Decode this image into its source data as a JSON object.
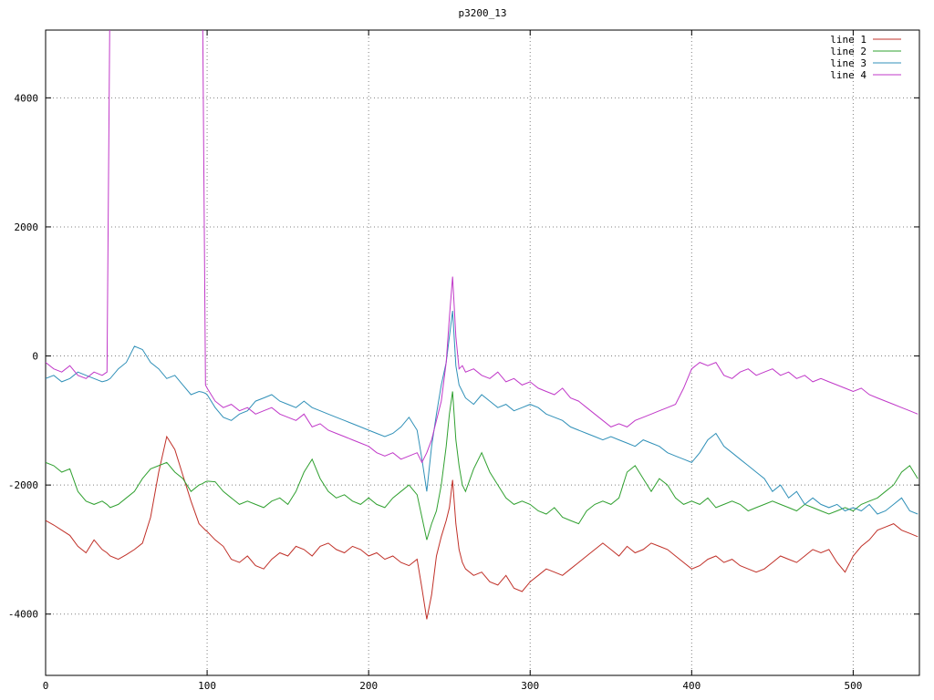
{
  "chart_data": {
    "type": "line",
    "title": "p3200_13",
    "xlabel": "",
    "ylabel": "",
    "xlim": [
      0,
      541
    ],
    "ylim": [
      -4950,
      5050
    ],
    "x_ticks": [
      0,
      100,
      200,
      300,
      400,
      500
    ],
    "y_ticks": [
      -4000,
      -2000,
      0,
      2000,
      4000
    ],
    "grid": "dotted",
    "legend_position": "top-right",
    "note": "line 4 is clipped above the plot top between x=40 and x=97",
    "x": [
      0,
      5,
      10,
      15,
      20,
      25,
      30,
      35,
      38,
      40,
      45,
      50,
      55,
      60,
      65,
      70,
      75,
      80,
      85,
      90,
      95,
      97,
      99,
      100,
      105,
      110,
      115,
      120,
      125,
      130,
      135,
      140,
      145,
      150,
      155,
      160,
      165,
      170,
      175,
      180,
      185,
      190,
      195,
      200,
      205,
      210,
      215,
      220,
      225,
      230,
      233,
      236,
      239,
      242,
      245,
      248,
      250,
      252,
      254,
      256,
      258,
      260,
      265,
      270,
      275,
      280,
      285,
      290,
      295,
      300,
      305,
      310,
      315,
      320,
      325,
      330,
      335,
      340,
      345,
      350,
      355,
      360,
      365,
      370,
      375,
      380,
      385,
      390,
      395,
      400,
      405,
      410,
      415,
      420,
      425,
      430,
      435,
      440,
      445,
      450,
      455,
      460,
      465,
      470,
      475,
      480,
      485,
      490,
      495,
      500,
      505,
      510,
      515,
      520,
      525,
      530,
      535,
      540
    ],
    "series": [
      {
        "name": "line 1",
        "color": "#c03028",
        "values": [
          -2550,
          -2620,
          -2700,
          -2780,
          -2950,
          -3050,
          -2850,
          -3000,
          -3050,
          -3100,
          -3150,
          -3080,
          -3000,
          -2900,
          -2500,
          -1800,
          -1250,
          -1450,
          -1850,
          -2250,
          -2600,
          -2650,
          -2700,
          -2720,
          -2850,
          -2950,
          -3150,
          -3200,
          -3100,
          -3250,
          -3300,
          -3150,
          -3050,
          -3100,
          -2950,
          -3000,
          -3100,
          -2950,
          -2900,
          -3000,
          -3050,
          -2950,
          -3000,
          -3100,
          -3050,
          -3150,
          -3100,
          -3200,
          -3250,
          -3150,
          -3600,
          -4080,
          -3700,
          -3100,
          -2800,
          -2550,
          -2350,
          -1920,
          -2600,
          -3000,
          -3200,
          -3300,
          -3400,
          -3350,
          -3500,
          -3550,
          -3400,
          -3600,
          -3650,
          -3500,
          -3400,
          -3300,
          -3350,
          -3400,
          -3300,
          -3200,
          -3100,
          -3000,
          -2900,
          -3000,
          -3100,
          -2950,
          -3050,
          -3000,
          -2900,
          -2950,
          -3000,
          -3100,
          -3200,
          -3300,
          -3250,
          -3150,
          -3100,
          -3200,
          -3150,
          -3250,
          -3300,
          -3350,
          -3300,
          -3200,
          -3100,
          -3150,
          -3200,
          -3100,
          -3000,
          -3050,
          -3000,
          -3200,
          -3350,
          -3100,
          -2950,
          -2850,
          -2700,
          -2650,
          -2600,
          -2700,
          -2750,
          -2800
        ]
      },
      {
        "name": "line 2",
        "color": "#30a030",
        "values": [
          -1650,
          -1700,
          -1800,
          -1750,
          -2100,
          -2250,
          -2300,
          -2250,
          -2300,
          -2350,
          -2300,
          -2200,
          -2100,
          -1900,
          -1750,
          -1700,
          -1650,
          -1800,
          -1900,
          -2100,
          -2000,
          -1980,
          -1950,
          -1940,
          -1950,
          -2100,
          -2200,
          -2300,
          -2250,
          -2300,
          -2350,
          -2250,
          -2200,
          -2300,
          -2100,
          -1800,
          -1600,
          -1900,
          -2100,
          -2200,
          -2150,
          -2250,
          -2300,
          -2200,
          -2300,
          -2350,
          -2200,
          -2100,
          -2000,
          -2150,
          -2500,
          -2850,
          -2600,
          -2400,
          -2000,
          -1400,
          -900,
          -550,
          -1300,
          -1700,
          -2000,
          -2100,
          -1750,
          -1500,
          -1800,
          -2000,
          -2200,
          -2300,
          -2250,
          -2300,
          -2400,
          -2450,
          -2350,
          -2500,
          -2550,
          -2600,
          -2400,
          -2300,
          -2250,
          -2300,
          -2200,
          -1800,
          -1700,
          -1900,
          -2100,
          -1900,
          -2000,
          -2200,
          -2300,
          -2250,
          -2300,
          -2200,
          -2350,
          -2300,
          -2250,
          -2300,
          -2400,
          -2350,
          -2300,
          -2250,
          -2300,
          -2350,
          -2400,
          -2300,
          -2350,
          -2400,
          -2450,
          -2400,
          -2350,
          -2400,
          -2300,
          -2250,
          -2200,
          -2100,
          -2000,
          -1800,
          -1700,
          -1900
        ]
      },
      {
        "name": "line 3",
        "color": "#3090b8",
        "values": [
          -350,
          -300,
          -400,
          -350,
          -250,
          -300,
          -350,
          -400,
          -380,
          -350,
          -200,
          -100,
          150,
          100,
          -100,
          -200,
          -350,
          -300,
          -450,
          -600,
          -550,
          -560,
          -580,
          -600,
          -800,
          -950,
          -1000,
          -900,
          -850,
          -700,
          -650,
          -600,
          -700,
          -750,
          -800,
          -700,
          -800,
          -850,
          -900,
          -950,
          -1000,
          -1050,
          -1100,
          -1150,
          -1200,
          -1250,
          -1200,
          -1100,
          -950,
          -1150,
          -1600,
          -2100,
          -1400,
          -900,
          -450,
          -100,
          300,
          700,
          -150,
          -450,
          -550,
          -650,
          -750,
          -600,
          -700,
          -800,
          -750,
          -850,
          -800,
          -750,
          -800,
          -900,
          -950,
          -1000,
          -1100,
          -1150,
          -1200,
          -1250,
          -1300,
          -1250,
          -1300,
          -1350,
          -1400,
          -1300,
          -1350,
          -1400,
          -1500,
          -1550,
          -1600,
          -1650,
          -1500,
          -1300,
          -1200,
          -1400,
          -1500,
          -1600,
          -1700,
          -1800,
          -1900,
          -2100,
          -2000,
          -2200,
          -2100,
          -2300,
          -2200,
          -2300,
          -2350,
          -2300,
          -2400,
          -2350,
          -2400,
          -2300,
          -2450,
          -2400,
          -2300,
          -2200,
          -2400,
          -2450
        ]
      },
      {
        "name": "line 4",
        "color": "#c038c8",
        "values": [
          -100,
          -200,
          -250,
          -150,
          -300,
          -350,
          -250,
          -300,
          -250,
          6000,
          6000,
          6000,
          6000,
          6000,
          6000,
          6000,
          6000,
          6000,
          6000,
          6000,
          6000,
          6000,
          -450,
          -500,
          -700,
          -800,
          -750,
          -850,
          -800,
          -900,
          -850,
          -800,
          -900,
          -950,
          -1000,
          -900,
          -1100,
          -1050,
          -1150,
          -1200,
          -1250,
          -1300,
          -1350,
          -1400,
          -1500,
          -1550,
          -1500,
          -1600,
          -1550,
          -1500,
          -1650,
          -1500,
          -1300,
          -1000,
          -700,
          -100,
          600,
          1230,
          300,
          -200,
          -150,
          -250,
          -200,
          -300,
          -350,
          -250,
          -400,
          -350,
          -450,
          -400,
          -500,
          -550,
          -600,
          -500,
          -650,
          -700,
          -800,
          -900,
          -1000,
          -1100,
          -1050,
          -1100,
          -1000,
          -950,
          -900,
          -850,
          -800,
          -750,
          -500,
          -200,
          -100,
          -150,
          -100,
          -300,
          -350,
          -250,
          -200,
          -300,
          -250,
          -200,
          -300,
          -250,
          -350,
          -300,
          -400,
          -350,
          -400,
          -450,
          -500,
          -550,
          -500,
          -600,
          -650,
          -700,
          -750,
          -800,
          -850,
          -900
        ]
      }
    ]
  }
}
